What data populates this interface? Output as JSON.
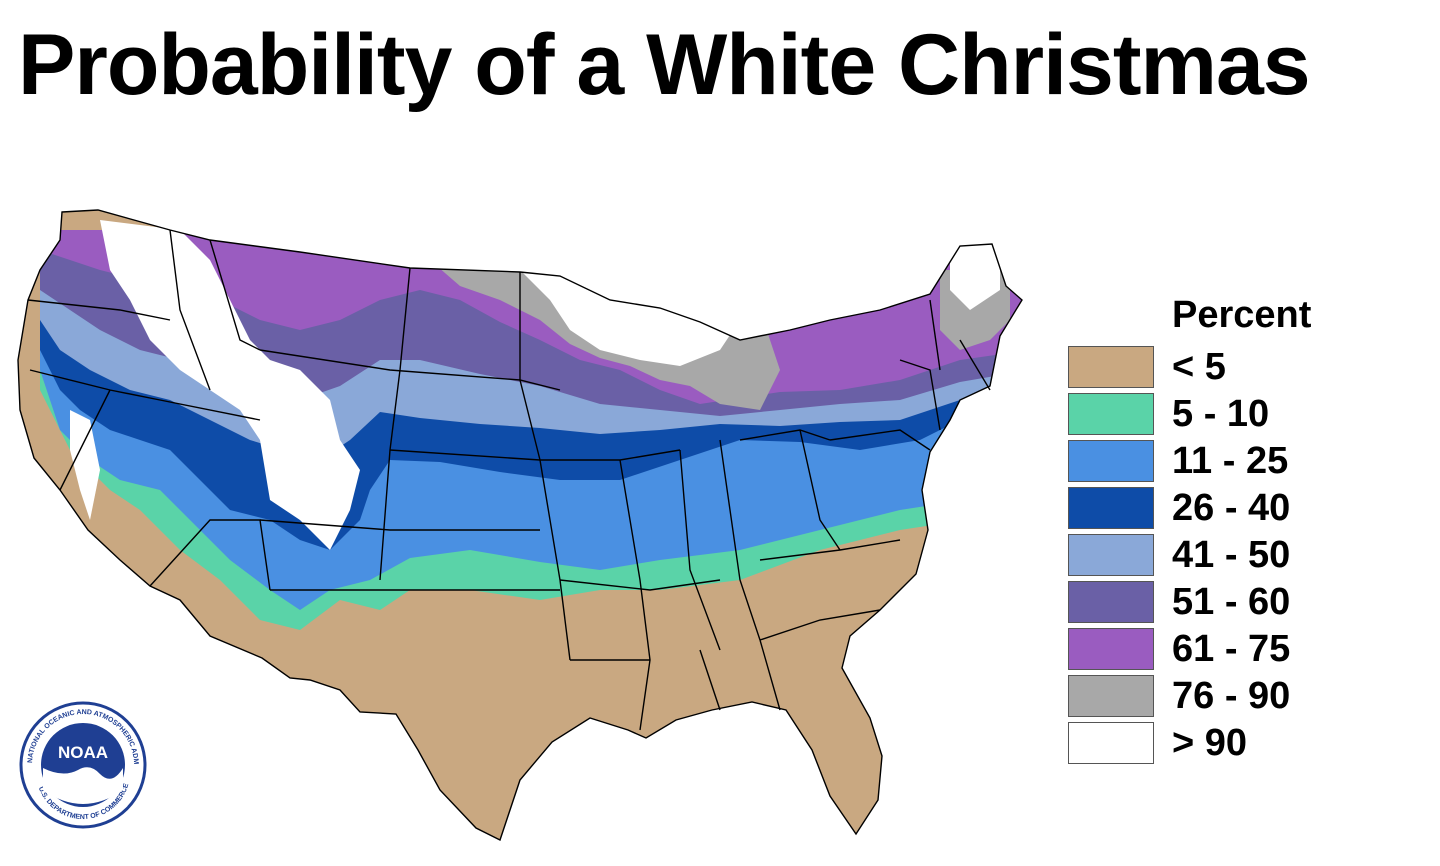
{
  "title": "Probability of a White Christmas",
  "legend": {
    "title": "Percent",
    "items": [
      {
        "label": "< 5",
        "color": "#c9a881"
      },
      {
        "label": "5 - 10",
        "color": "#5ad3a8"
      },
      {
        "label": "11 - 25",
        "color": "#4a90e2"
      },
      {
        "label": "26 - 40",
        "color": "#0e4ca8"
      },
      {
        "label": "41 - 50",
        "color": "#8aa8d8"
      },
      {
        "label": "51 - 60",
        "color": "#6a60a6"
      },
      {
        "label": "61 - 75",
        "color": "#9a5cc0"
      },
      {
        "label": "76 - 90",
        "color": "#a8a8a8"
      },
      {
        "label": "> 90",
        "color": "#ffffff"
      }
    ]
  },
  "logo": {
    "text": "NOAA",
    "ring_text_top": "NATIONAL OCEANIC AND ATMOSPHERIC ADMINISTRATION",
    "ring_text_bottom": "U.S. DEPARTMENT OF COMMERCE",
    "icon": "noaa-logo"
  }
}
